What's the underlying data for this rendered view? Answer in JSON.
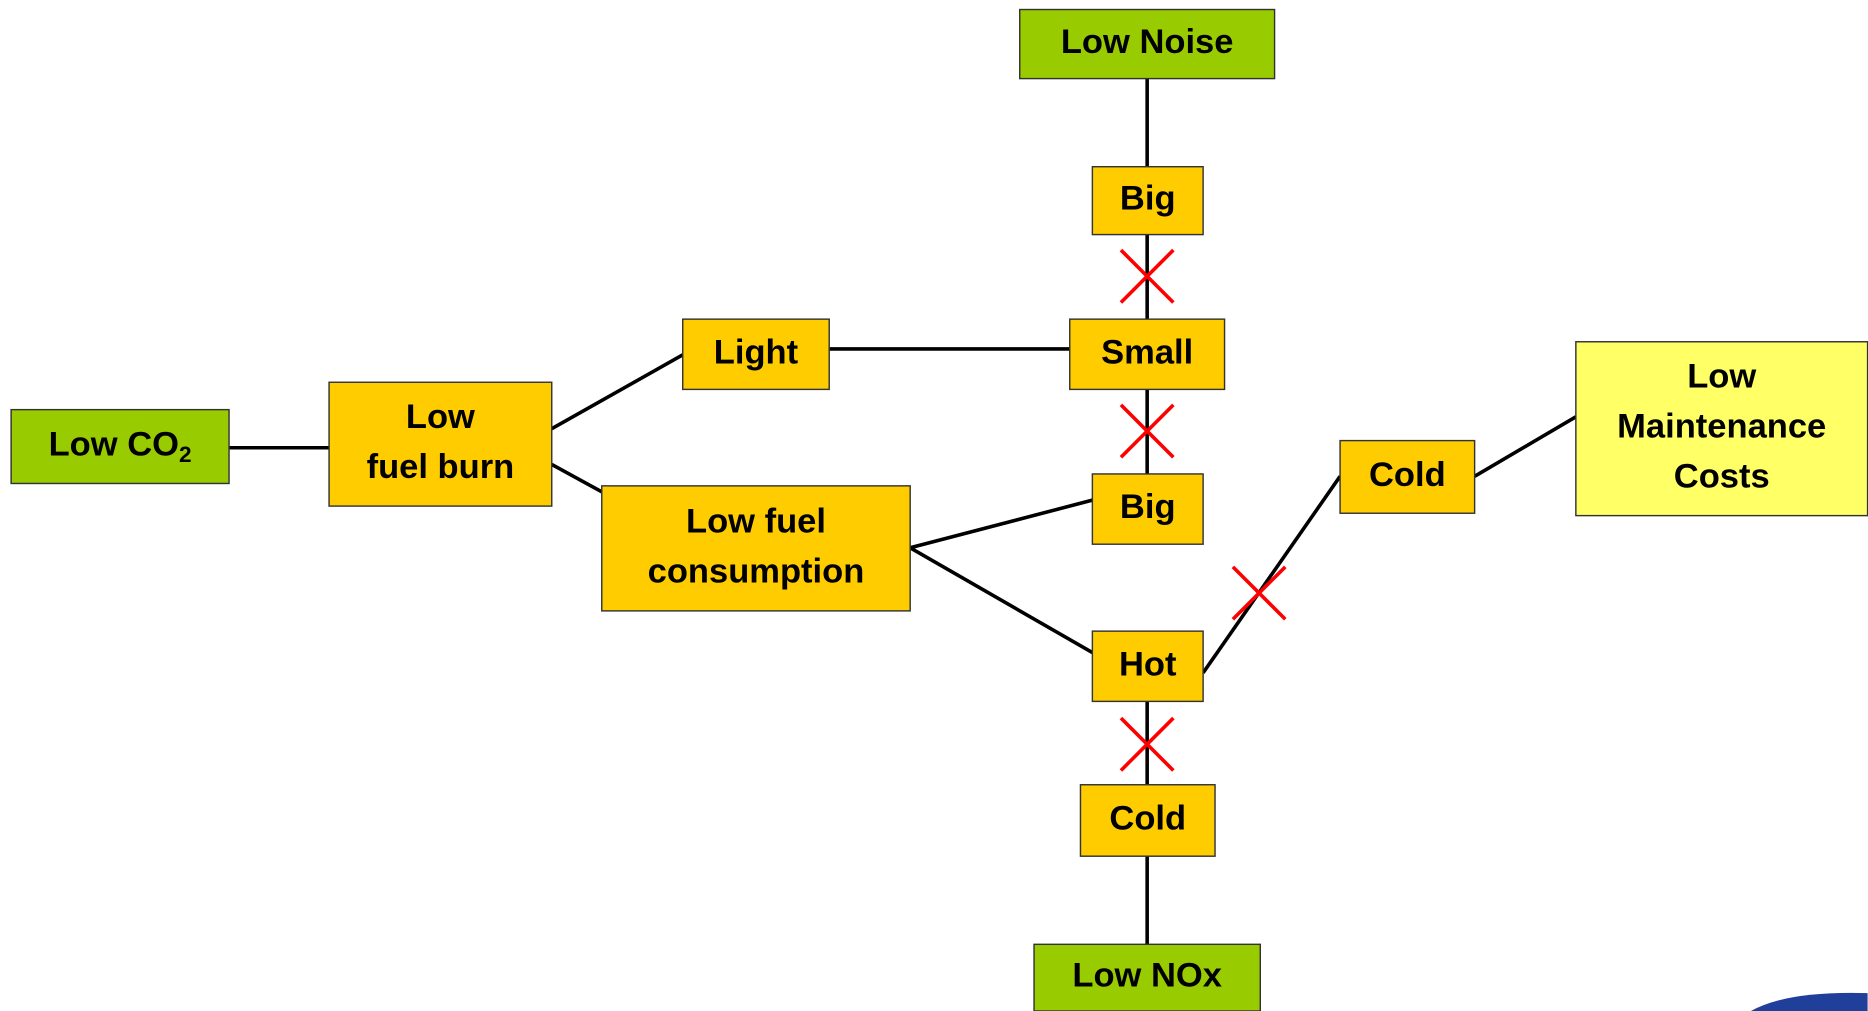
{
  "nodes": [
    {
      "lines": [
        "Low Noise"
      ]
    },
    {
      "lines": [
        "Big"
      ]
    },
    {
      "lines": [
        "Small"
      ]
    },
    {
      "lines": [
        "Light"
      ]
    },
    {
      "lines": [
        "Low CO"
      ],
      "subscript": "2"
    },
    {
      "lines": [
        "Low",
        "fuel burn"
      ]
    },
    {
      "lines": [
        "Low fuel",
        "consumption"
      ]
    },
    {
      "lines": [
        "Big"
      ]
    },
    {
      "lines": [
        "Cold"
      ]
    },
    {
      "lines": [
        "Low",
        "Maintenance",
        "Costs"
      ]
    },
    {
      "lines": [
        "Hot"
      ]
    },
    {
      "lines": [
        "Cold"
      ]
    },
    {
      "lines": [
        "Low NOx"
      ]
    }
  ]
}
